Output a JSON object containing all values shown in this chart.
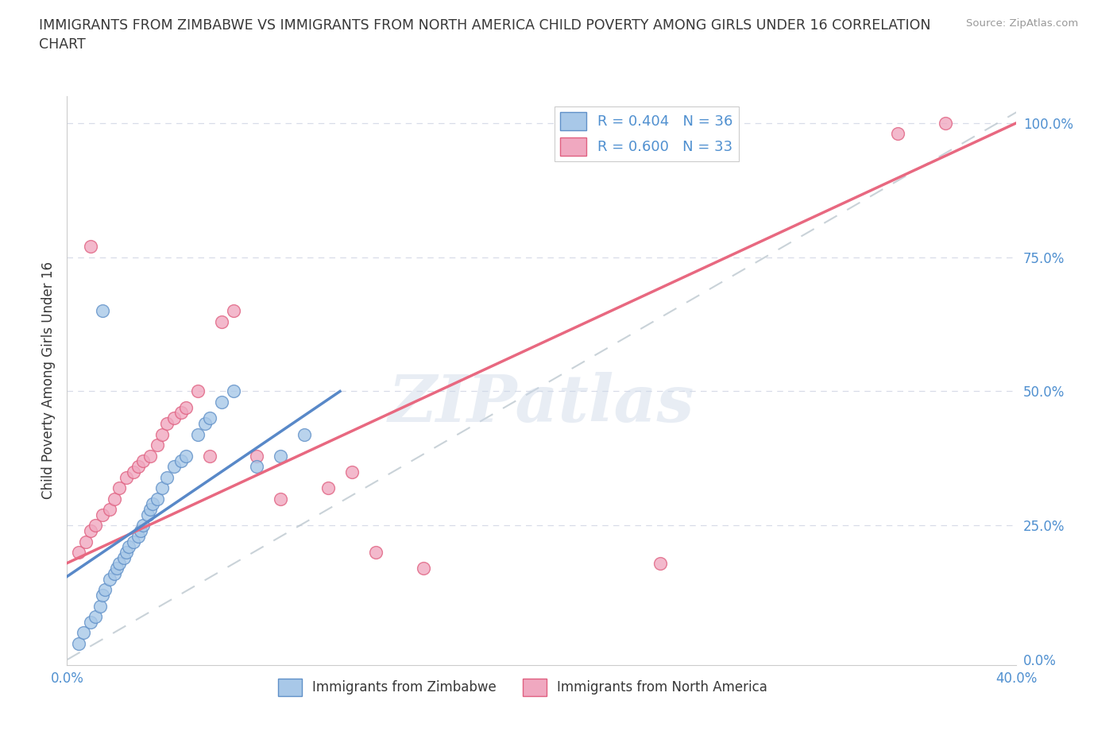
{
  "title": "IMMIGRANTS FROM ZIMBABWE VS IMMIGRANTS FROM NORTH AMERICA CHILD POVERTY AMONG GIRLS UNDER 16 CORRELATION\nCHART",
  "source": "Source: ZipAtlas.com",
  "ylabel": "Child Poverty Among Girls Under 16",
  "ytick_labels": [
    "0.0%",
    "25.0%",
    "50.0%",
    "75.0%",
    "100.0%"
  ],
  "ytick_values": [
    0.0,
    0.25,
    0.5,
    0.75,
    1.0
  ],
  "legend_r1": "R = 0.404",
  "legend_n1": "N = 36",
  "legend_r2": "R = 0.600",
  "legend_n2": "N = 33",
  "legend_label1": "Immigrants from Zimbabwe",
  "legend_label2": "Immigrants from North America",
  "watermark": "ZIPatlas",
  "blue_color": "#a8c8e8",
  "pink_color": "#f0a8c0",
  "blue_edge_color": "#6090c8",
  "pink_edge_color": "#e06080",
  "blue_line_color": "#5888c8",
  "pink_line_color": "#e86880",
  "gray_dash_color": "#b8c4cc",
  "title_color": "#383838",
  "axis_tick_color": "#5090d0",
  "grid_color": "#d8dce8",
  "blue_scatter_x": [
    0.005,
    0.007,
    0.01,
    0.012,
    0.014,
    0.015,
    0.016,
    0.018,
    0.02,
    0.021,
    0.022,
    0.024,
    0.025,
    0.026,
    0.028,
    0.03,
    0.031,
    0.032,
    0.034,
    0.035,
    0.036,
    0.038,
    0.04,
    0.042,
    0.045,
    0.048,
    0.05,
    0.055,
    0.058,
    0.06,
    0.065,
    0.07,
    0.08,
    0.09,
    0.1,
    0.015
  ],
  "blue_scatter_y": [
    0.03,
    0.05,
    0.07,
    0.08,
    0.1,
    0.12,
    0.13,
    0.15,
    0.16,
    0.17,
    0.18,
    0.19,
    0.2,
    0.21,
    0.22,
    0.23,
    0.24,
    0.25,
    0.27,
    0.28,
    0.29,
    0.3,
    0.32,
    0.34,
    0.36,
    0.37,
    0.38,
    0.42,
    0.44,
    0.45,
    0.48,
    0.5,
    0.36,
    0.38,
    0.42,
    0.65
  ],
  "pink_scatter_x": [
    0.005,
    0.008,
    0.01,
    0.012,
    0.015,
    0.018,
    0.02,
    0.022,
    0.025,
    0.028,
    0.03,
    0.032,
    0.035,
    0.038,
    0.04,
    0.042,
    0.045,
    0.048,
    0.05,
    0.055,
    0.06,
    0.065,
    0.07,
    0.08,
    0.09,
    0.11,
    0.12,
    0.13,
    0.15,
    0.25,
    0.35,
    0.37,
    0.01
  ],
  "pink_scatter_y": [
    0.2,
    0.22,
    0.24,
    0.25,
    0.27,
    0.28,
    0.3,
    0.32,
    0.34,
    0.35,
    0.36,
    0.37,
    0.38,
    0.4,
    0.42,
    0.44,
    0.45,
    0.46,
    0.47,
    0.5,
    0.38,
    0.63,
    0.65,
    0.38,
    0.3,
    0.32,
    0.35,
    0.2,
    0.17,
    0.18,
    0.98,
    1.0,
    0.77
  ],
  "blue_line_x0": 0.0,
  "blue_line_x1": 0.115,
  "blue_line_y0": 0.155,
  "blue_line_y1": 0.5,
  "pink_line_x0": 0.0,
  "pink_line_x1": 0.4,
  "pink_line_y0": 0.18,
  "pink_line_y1": 1.0,
  "gray_line_x0": 0.0,
  "gray_line_x1": 0.4,
  "gray_line_y0": 0.0,
  "gray_line_y1": 1.02,
  "xlim": [
    0.0,
    0.4
  ],
  "ylim": [
    -0.01,
    1.05
  ],
  "xtick_positions": [
    0.0,
    0.1,
    0.2,
    0.3,
    0.4
  ],
  "xtick_labels": [
    "0.0%",
    "",
    "",
    "",
    "40.0%"
  ]
}
